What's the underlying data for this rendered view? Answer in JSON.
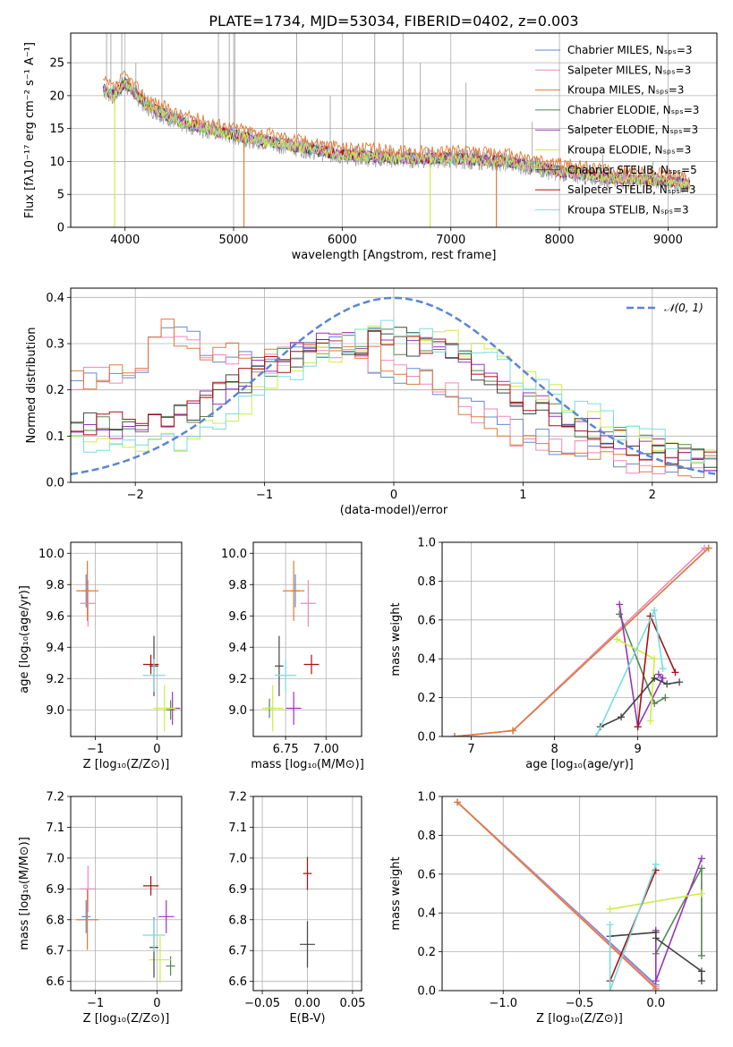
{
  "chart_data": [
    {
      "type": "line",
      "title": "PLATE=1734, MJD=53034, FIBERID=0402, z=0.003",
      "xlabel": "wavelength [Angstrom, rest frame]",
      "ylabel": "Flux [fλ10⁻¹⁷ erg cm⁻² s⁻¹ A⁻¹]",
      "xlim": [
        3500,
        9450
      ],
      "ylim": [
        0,
        29.5
      ],
      "xticks": [
        "4000",
        "5000",
        "6000",
        "7000",
        "8000",
        "9000"
      ],
      "yticks": [
        "0",
        "5",
        "10",
        "15",
        "20",
        "25"
      ],
      "legend_position": "top-right",
      "legend": [
        "Chabrier MILES, Nₛₚₛ=3",
        "Salpeter MILES, Nₛₚₛ=3",
        "Kroupa MILES, Nₛₚₛ=3",
        "Chabrier ELODIE, Nₛₚₛ=3",
        "Salpeter ELODIE, Nₛₚₛ=3",
        "Kroupa ELODIE, Nₛₚₛ=3",
        "Chabrier STELIB, Nₛₚₛ=5",
        "Salpeter STELIB, Nₛₚₛ=3",
        "Kroupa STELIB, Nₛₚₛ=3"
      ],
      "spectrum_envelope": {
        "x": [
          3800,
          3900,
          4000,
          4200,
          4500,
          5000,
          5500,
          6000,
          6500,
          7000,
          7500,
          8000,
          8500,
          9000,
          9200
        ],
        "y": [
          21,
          20,
          22,
          18.5,
          16,
          14,
          12.5,
          11,
          10.5,
          10.5,
          10,
          8.5,
          7.5,
          7,
          6.5
        ]
      },
      "observed_emission_lines": [
        {
          "x": 3830,
          "y": 29.5
        },
        {
          "x": 3870,
          "y": 29.5
        },
        {
          "x": 3970,
          "y": 29.5
        },
        {
          "x": 4100,
          "y": 25
        },
        {
          "x": 4340,
          "y": 29.5
        },
        {
          "x": 4860,
          "y": 29.5
        },
        {
          "x": 4960,
          "y": 29.5
        },
        {
          "x": 5010,
          "y": 29.5
        },
        {
          "x": 5580,
          "y": 29.5
        },
        {
          "x": 5890,
          "y": 20
        },
        {
          "x": 6300,
          "y": 29.5
        },
        {
          "x": 6560,
          "y": 29.5
        },
        {
          "x": 6720,
          "y": 25
        },
        {
          "x": 7140,
          "y": 22
        },
        {
          "x": 7750,
          "y": 16
        },
        {
          "x": 8400,
          "y": 11
        },
        {
          "x": 8860,
          "y": 10
        }
      ],
      "model_dropouts": [
        {
          "x": 3905,
          "y": 0,
          "series": "Kroupa ELODIE, Nₛₚₛ=3"
        },
        {
          "x": 5095,
          "y": 0,
          "series": "Kroupa MILES, Nₛₚₛ=3"
        },
        {
          "x": 6810,
          "y": 0,
          "series": "Kroupa ELODIE, Nₛₚₛ=3"
        },
        {
          "x": 7420,
          "y": 0,
          "series": "Kroupa MILES, Nₛₚₛ=3"
        }
      ]
    },
    {
      "type": "line",
      "xlabel": "(data-model)/error",
      "ylabel": "Normed distribution",
      "xlim": [
        -2.5,
        2.5
      ],
      "ylim": [
        0,
        0.42
      ],
      "xticks": [
        "−2",
        "−1",
        "0",
        "1",
        "2"
      ],
      "yticks": [
        "0.0",
        "0.1",
        "0.2",
        "0.3",
        "0.4"
      ],
      "legend_position": "top-right",
      "legend": [
        "𝒩(0, 1)"
      ],
      "histogram_groups": [
        {
          "x": [
            -2.5,
            -2,
            -1.75,
            -1.5,
            -1,
            -0.5,
            0,
            0.5,
            1,
            1.5,
            2,
            2.5
          ],
          "y": [
            0.22,
            0.25,
            0.33,
            0.29,
            0.26,
            0.3,
            0.25,
            0.18,
            0.1,
            0.06,
            0.04,
            0.03
          ]
        },
        {
          "x": [
            -2.5,
            -2,
            -1.5,
            -1,
            -0.5,
            0,
            0.5,
            1,
            1.5,
            2,
            2.5
          ],
          "y": [
            0.13,
            0.12,
            0.16,
            0.25,
            0.3,
            0.31,
            0.27,
            0.18,
            0.12,
            0.07,
            0.05
          ]
        },
        {
          "x": [
            -2.5,
            -2,
            -1.5,
            -1,
            -0.5,
            0,
            0.5,
            1,
            1.5,
            2,
            2.5
          ],
          "y": [
            0.08,
            0.07,
            0.1,
            0.2,
            0.28,
            0.33,
            0.3,
            0.22,
            0.15,
            0.09,
            0.06
          ]
        }
      ]
    },
    {
      "type": "scatter",
      "xlabel": "Z [log₁₀(Z/Z⊙)]",
      "ylabel": "age  [log₁₀(age/yr)]",
      "xlim": [
        -1.4,
        0.4
      ],
      "ylim": [
        8.83,
        10.07
      ],
      "xticks": [
        "−1",
        "0"
      ],
      "yticks": [
        "9.0",
        "9.2",
        "9.4",
        "9.6",
        "9.8",
        "10.0"
      ],
      "points": [
        {
          "x": -1.15,
          "y": 9.76,
          "c": 0
        },
        {
          "x": -1.12,
          "y": 9.68,
          "c": 1
        },
        {
          "x": -1.13,
          "y": 9.76,
          "c": 2
        },
        {
          "x": 0.22,
          "y": 9.0,
          "c": 3
        },
        {
          "x": 0.25,
          "y": 9.01,
          "c": 4
        },
        {
          "x": 0.12,
          "y": 9.01,
          "c": 5
        },
        {
          "x": -0.05,
          "y": 9.28,
          "c": 6
        },
        {
          "x": -0.1,
          "y": 9.29,
          "c": 7
        },
        {
          "x": -0.05,
          "y": 9.22,
          "c": 8
        }
      ]
    },
    {
      "type": "scatter",
      "xlabel": "mass [log₁₀(M/M⊙)]",
      "xlim": [
        6.55,
        7.22
      ],
      "ylim": [
        8.83,
        10.07
      ],
      "xticks": [
        "6.75",
        "7.00"
      ],
      "yticks": [
        "9.0",
        "9.2",
        "9.4",
        "9.6",
        "9.8",
        "10.0"
      ],
      "points": [
        {
          "x": 6.81,
          "y": 9.76,
          "c": 0
        },
        {
          "x": 6.89,
          "y": 9.68,
          "c": 1
        },
        {
          "x": 6.8,
          "y": 9.76,
          "c": 2
        },
        {
          "x": 6.65,
          "y": 9.01,
          "c": 3
        },
        {
          "x": 6.8,
          "y": 9.01,
          "c": 4
        },
        {
          "x": 6.67,
          "y": 9.01,
          "c": 5
        },
        {
          "x": 6.71,
          "y": 9.28,
          "c": 6
        },
        {
          "x": 6.91,
          "y": 9.29,
          "c": 7
        },
        {
          "x": 6.75,
          "y": 9.22,
          "c": 8
        }
      ]
    },
    {
      "type": "line",
      "xlabel": "age  [log₁₀(age/yr)]",
      "ylabel": "mass weight",
      "xlim": [
        6.65,
        9.95
      ],
      "ylim": [
        0,
        1
      ],
      "xticks": [
        "7",
        "8",
        "9"
      ],
      "yticks": [
        "0.0",
        "0.2",
        "0.4",
        "0.6",
        "0.8",
        "1.0"
      ],
      "series": [
        {
          "x": [
            6.8,
            7.5,
            9.85
          ],
          "y": [
            0,
            0.03,
            0.97
          ]
        },
        {
          "x": [
            6.8,
            7.5,
            9.8
          ],
          "y": [
            0,
            0.03,
            0.97
          ]
        },
        {
          "x": [
            6.8,
            7.5,
            9.85
          ],
          "y": [
            0,
            0.03,
            0.97
          ]
        },
        {
          "x": [
            8.78,
            9.2,
            9.33
          ],
          "y": [
            0.63,
            0.17,
            0.2
          ]
        },
        {
          "x": [
            8.78,
            9.0,
            9.3,
            9.25
          ],
          "y": [
            0.68,
            0.05,
            0.3,
            0.32
          ]
        },
        {
          "x": [
            8.75,
            9.2,
            9.15
          ],
          "y": [
            0.5,
            0.4,
            0.08
          ]
        },
        {
          "x": [
            8.55,
            8.8,
            9.2,
            9.35,
            9.5
          ],
          "y": [
            0.05,
            0.1,
            0.3,
            0.27,
            0.28
          ]
        },
        {
          "x": [
            9.0,
            9.15,
            9.45
          ],
          "y": [
            0.05,
            0.62,
            0.33
          ]
        },
        {
          "x": [
            8.5,
            9.2,
            9.3
          ],
          "y": [
            0.0,
            0.65,
            0.35
          ]
        }
      ]
    },
    {
      "type": "scatter",
      "xlabel": "Z [log₁₀(Z/Z⊙)]",
      "ylabel": "mass [log₁₀(M/M⊙)]",
      "xlim": [
        -1.4,
        0.4
      ],
      "ylim": [
        6.57,
        7.2
      ],
      "xticks": [
        "−1",
        "0"
      ],
      "yticks": [
        "6.6",
        "6.7",
        "6.8",
        "6.9",
        "7.0",
        "7.1",
        "7.2"
      ],
      "points": [
        {
          "x": -1.15,
          "y": 6.81,
          "c": 0
        },
        {
          "x": -1.12,
          "y": 6.9,
          "c": 1
        },
        {
          "x": -1.13,
          "y": 6.8,
          "c": 2
        },
        {
          "x": 0.22,
          "y": 6.65,
          "c": 3
        },
        {
          "x": 0.15,
          "y": 6.81,
          "c": 4
        },
        {
          "x": 0.05,
          "y": 6.67,
          "c": 5
        },
        {
          "x": -0.05,
          "y": 6.71,
          "c": 6
        },
        {
          "x": -0.1,
          "y": 6.91,
          "c": 7
        },
        {
          "x": -0.05,
          "y": 6.75,
          "c": 8
        }
      ]
    },
    {
      "type": "scatter",
      "xlabel": "E(B-V)",
      "xlim": [
        -0.06,
        0.06
      ],
      "ylim": [
        6.57,
        7.2
      ],
      "xticks": [
        "−0.05",
        "0.00",
        "0.05"
      ],
      "yticks": [
        "6.6",
        "6.7",
        "6.8",
        "6.9",
        "7.0",
        "7.1",
        "7.2"
      ],
      "points": [
        {
          "x": 0.0,
          "y": 6.95,
          "c": 7
        },
        {
          "x": 0.0,
          "y": 6.72,
          "c": 6
        }
      ]
    },
    {
      "type": "line",
      "xlabel": "Z [log₁₀(Z/Z⊙)]",
      "ylabel": "mass weight",
      "xlim": [
        -1.4,
        0.4
      ],
      "ylim": [
        0,
        1
      ],
      "xticks": [
        "−1.0",
        "−0.5",
        "0.0"
      ],
      "yticks": [
        "0.0",
        "0.2",
        "0.4",
        "0.6",
        "0.8",
        "1.0"
      ],
      "series": [
        {
          "x": [
            -1.3,
            0.0
          ],
          "y": [
            0.97,
            0.03
          ]
        },
        {
          "x": [
            -1.3,
            0.0
          ],
          "y": [
            0.97,
            0.02
          ]
        },
        {
          "x": [
            -1.3,
            0.0
          ],
          "y": [
            0.97,
            0.01
          ]
        },
        {
          "x": [
            0.0,
            0.3,
            0.3
          ],
          "y": [
            0.19,
            0.63,
            0.18
          ]
        },
        {
          "x": [
            0.0,
            0.0,
            0.3
          ],
          "y": [
            0.31,
            0.05,
            0.68
          ]
        },
        {
          "x": [
            -0.3,
            0.3
          ],
          "y": [
            0.42,
            0.5
          ]
        },
        {
          "x": [
            -0.3,
            0.0,
            0.0,
            0.3,
            0.3
          ],
          "y": [
            0.28,
            0.3,
            0.27,
            0.1,
            0.05
          ]
        },
        {
          "x": [
            -0.3,
            0.0
          ],
          "y": [
            0.05,
            0.62
          ]
        },
        {
          "x": [
            -0.3,
            -0.3,
            0.0
          ],
          "y": [
            0.34,
            0.0,
            0.65
          ]
        }
      ]
    }
  ],
  "palette": [
    "#6688cc",
    "#ee88bb",
    "#cc8833",
    "#558855",
    "#9933bb",
    "#ccee44",
    "#444444",
    "#aa1111",
    "#77dddd"
  ],
  "colors": {
    "orange": "#e07b39",
    "grey": "#999999",
    "normal": "#5b85d5"
  }
}
